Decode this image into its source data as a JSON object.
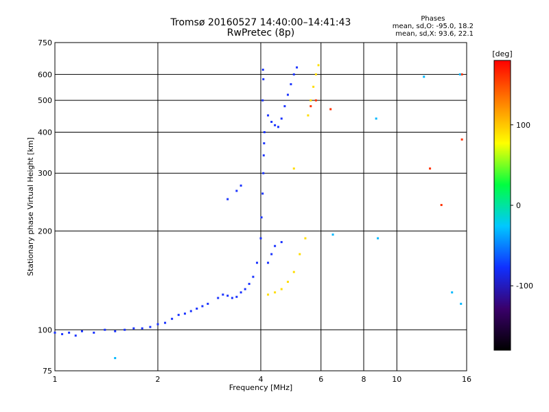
{
  "header": {
    "title_line1": "Tromsø 20160527 14:40:00–14:41:43",
    "title_line2": "RwPretec (8p)",
    "phases_title": "Phases",
    "phases_line1": "mean, sd,O: -95.0, 18.2",
    "phases_line2": "mean, sd,X:  93.6, 22.1"
  },
  "chart_data": {
    "type": "scatter",
    "title": "Tromsø 20160527 14:40:00–14:41:43",
    "subtitle": "RwPretec (8p)",
    "xlabel": "Frequency [MHz]",
    "ylabel": "Stationary phase Virtual Height [km]",
    "x_scale": "log",
    "y_scale": "log",
    "xlim": [
      1,
      16
    ],
    "ylim": [
      75,
      750
    ],
    "x_ticks": [
      1,
      2,
      4,
      6,
      8,
      10,
      16
    ],
    "y_ticks": [
      75,
      100,
      200,
      300,
      400,
      500,
      600,
      750
    ],
    "grid": true,
    "colorbar": {
      "label": "[deg]",
      "range": [
        -180,
        180
      ],
      "ticks": [
        100,
        0,
        -100
      ],
      "palette": [
        "#000000",
        "#3a006a",
        "#1030ff",
        "#00c8ff",
        "#00ff40",
        "#ffff00",
        "#ff8000",
        "#ff0000"
      ]
    },
    "series": [
      {
        "phase_deg": -100,
        "color": "#1a33ff",
        "points": [
          [
            1.0,
            98
          ],
          [
            1.05,
            97
          ],
          [
            1.1,
            98
          ],
          [
            1.15,
            96
          ],
          [
            1.2,
            99
          ],
          [
            1.3,
            98
          ],
          [
            1.4,
            100
          ],
          [
            1.5,
            99
          ],
          [
            1.6,
            100
          ],
          [
            1.7,
            101
          ],
          [
            1.8,
            101
          ],
          [
            1.9,
            102
          ],
          [
            2.0,
            104
          ],
          [
            2.1,
            105
          ],
          [
            2.2,
            108
          ],
          [
            2.3,
            111
          ],
          [
            2.4,
            112
          ],
          [
            2.5,
            114
          ],
          [
            2.6,
            116
          ],
          [
            2.7,
            118
          ],
          [
            2.8,
            120
          ],
          [
            3.0,
            125
          ],
          [
            3.1,
            128
          ],
          [
            3.2,
            127
          ],
          [
            3.3,
            125
          ],
          [
            3.4,
            126
          ],
          [
            3.5,
            130
          ],
          [
            3.6,
            133
          ],
          [
            3.7,
            138
          ],
          [
            3.8,
            145
          ],
          [
            3.9,
            160
          ],
          [
            4.0,
            190
          ],
          [
            4.02,
            220
          ],
          [
            4.05,
            260
          ],
          [
            4.07,
            300
          ],
          [
            4.08,
            340
          ],
          [
            4.09,
            370
          ],
          [
            4.1,
            400
          ],
          [
            4.05,
            500
          ],
          [
            4.07,
            580
          ],
          [
            4.06,
            620
          ],
          [
            4.2,
            450
          ],
          [
            4.3,
            430
          ],
          [
            4.4,
            420
          ],
          [
            4.5,
            415
          ],
          [
            4.6,
            440
          ],
          [
            4.7,
            480
          ],
          [
            4.8,
            520
          ],
          [
            4.9,
            560
          ],
          [
            5.0,
            600
          ],
          [
            5.1,
            630
          ],
          [
            4.2,
            160
          ],
          [
            4.3,
            170
          ],
          [
            4.4,
            180
          ],
          [
            4.6,
            185
          ],
          [
            3.2,
            250
          ],
          [
            3.4,
            265
          ],
          [
            3.5,
            275
          ]
        ]
      },
      {
        "phase_deg": 100,
        "color": "#ffdd00",
        "points": [
          [
            4.2,
            128
          ],
          [
            4.4,
            130
          ],
          [
            4.6,
            133
          ],
          [
            4.8,
            140
          ],
          [
            5.0,
            150
          ],
          [
            5.2,
            170
          ],
          [
            5.4,
            190
          ],
          [
            5.0,
            310
          ],
          [
            5.5,
            450
          ],
          [
            5.6,
            500
          ],
          [
            5.7,
            550
          ],
          [
            5.8,
            600
          ],
          [
            5.9,
            640
          ]
        ]
      },
      {
        "phase_deg": 150,
        "color": "#ff3000",
        "points": [
          [
            5.6,
            480
          ],
          [
            5.8,
            500
          ],
          [
            6.4,
            470
          ],
          [
            12.5,
            310
          ],
          [
            15.5,
            600
          ],
          [
            15.5,
            380
          ],
          [
            13.5,
            240
          ]
        ]
      },
      {
        "phase_deg": -70,
        "color": "#00b8ff",
        "points": [
          [
            1.5,
            82
          ],
          [
            8.7,
            440
          ],
          [
            8.8,
            190
          ],
          [
            12.0,
            590
          ],
          [
            6.5,
            195
          ],
          [
            15.3,
            600
          ],
          [
            15.4,
            120
          ],
          [
            14.5,
            130
          ]
        ]
      }
    ]
  }
}
